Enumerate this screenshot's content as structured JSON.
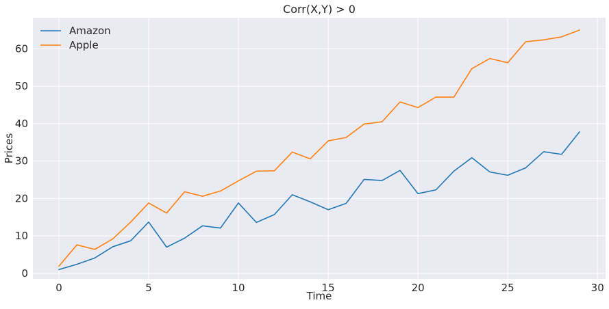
{
  "chart_data": {
    "type": "line",
    "title": "Corr(X,Y) > 0",
    "xlabel": "Time",
    "ylabel": "Prices",
    "xlim": [
      -1.45,
      30.45
    ],
    "ylim": [
      -1.5,
      68.3
    ],
    "xticks": [
      0,
      5,
      10,
      15,
      20,
      25,
      30
    ],
    "yticks": [
      0,
      10,
      20,
      30,
      40,
      50,
      60
    ],
    "grid": true,
    "legend_position": "top-left",
    "background_color": "#eaeaf2",
    "grid_color": "#ffffff",
    "x": [
      0,
      1,
      2,
      3,
      4,
      5,
      6,
      7,
      8,
      9,
      10,
      11,
      12,
      13,
      14,
      15,
      16,
      17,
      18,
      19,
      20,
      21,
      22,
      23,
      24,
      25,
      26,
      27,
      28,
      29
    ],
    "series": [
      {
        "name": "Amazon",
        "color": "#1f77b4",
        "values": [
          1.0,
          2.4,
          4.1,
          7.1,
          8.7,
          13.7,
          7.0,
          9.4,
          12.7,
          12.1,
          18.8,
          13.6,
          15.7,
          21.0,
          19.1,
          17.0,
          18.7,
          25.1,
          24.8,
          27.5,
          21.3,
          22.3,
          27.3,
          30.9,
          27.1,
          26.2,
          28.2,
          32.5,
          31.8,
          37.8
        ]
      },
      {
        "name": "Apple",
        "color": "#ff7f0e",
        "values": [
          1.9,
          7.6,
          6.4,
          9.2,
          13.7,
          18.8,
          16.1,
          21.8,
          20.6,
          22.0,
          24.7,
          27.3,
          27.4,
          32.4,
          30.6,
          35.4,
          36.3,
          39.9,
          40.5,
          45.8,
          44.3,
          47.1,
          47.1,
          54.7,
          57.4,
          56.3,
          61.9,
          62.4,
          63.2,
          65.0
        ]
      }
    ]
  }
}
